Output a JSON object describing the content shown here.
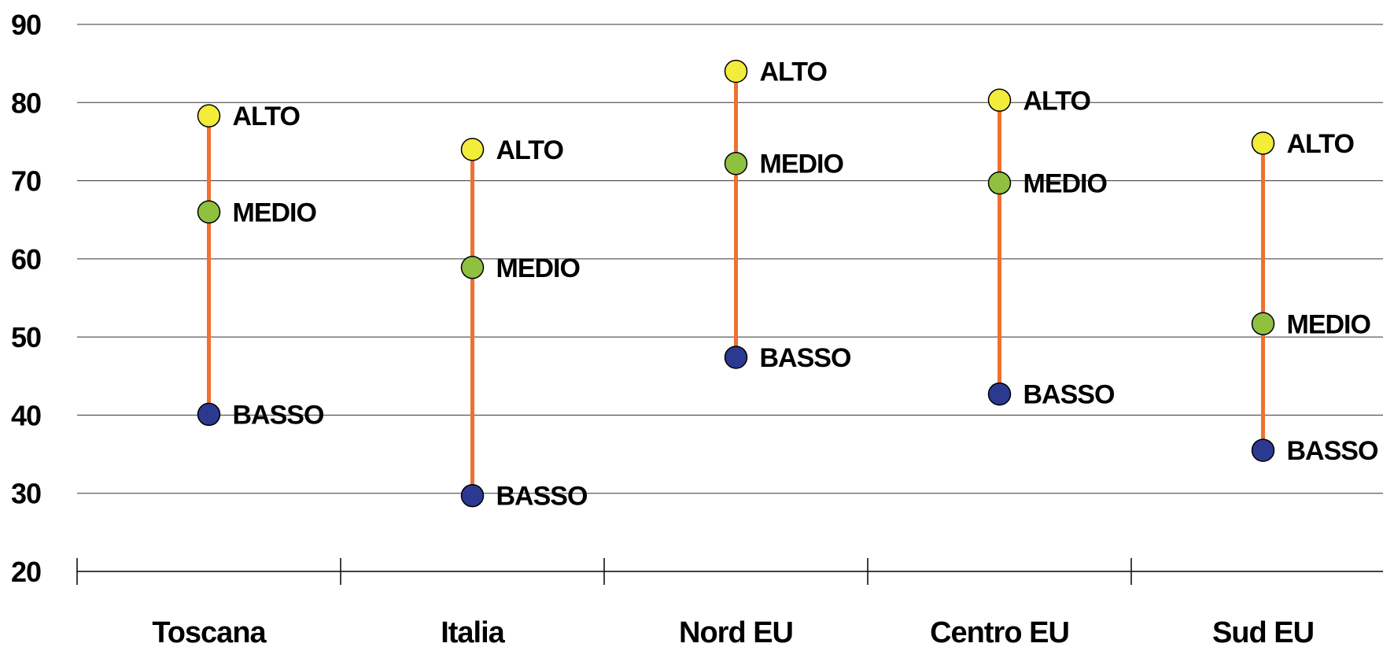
{
  "chart_data": {
    "type": "scatter",
    "subtype": "high-low-range",
    "title": "",
    "xlabel": "",
    "ylabel": "",
    "categories": [
      "Toscana",
      "Italia",
      "Nord EU",
      "Centro EU",
      "Sud EU"
    ],
    "ylim": [
      20,
      90
    ],
    "yticks": [
      20,
      30,
      40,
      50,
      60,
      70,
      80,
      90
    ],
    "grid": true,
    "legend": "none",
    "range_line_color": "#f07030",
    "series": [
      {
        "name": "ALTO",
        "color": "#f2ec3a",
        "values": [
          78.3,
          74.0,
          84.0,
          80.3,
          74.8
        ]
      },
      {
        "name": "MEDIO",
        "color": "#8fc040",
        "values": [
          66.0,
          58.9,
          72.2,
          69.7,
          51.7
        ]
      },
      {
        "name": "BASSO",
        "color": "#2b3990",
        "values": [
          40.1,
          29.7,
          47.4,
          42.7,
          35.5
        ]
      }
    ]
  }
}
